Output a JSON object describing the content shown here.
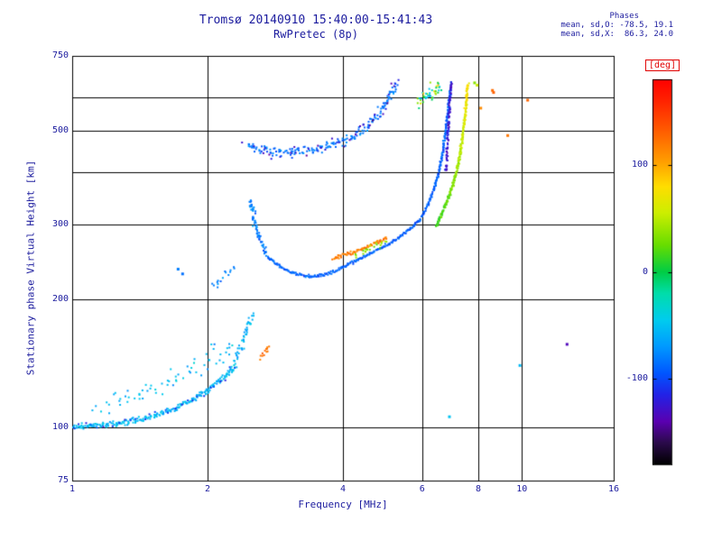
{
  "header": {
    "title": "Tromsø 20140910 15:40:00-15:41:43",
    "subtitle": "RwPretec (8p)",
    "phases_label": "Phases",
    "mean_sd_o": "mean, sd,O: -78.5, 19.1",
    "mean_sd_x": "mean, sd,X:  86.3, 24.0"
  },
  "colors": {
    "background": "#ffffff",
    "text": "#1b1b9e",
    "deg_label": "#e00000",
    "grid": "#000000"
  },
  "axes": {
    "xlabel": "Frequency [MHz]",
    "ylabel": "Stationary phase Virtual Height [km]",
    "x_scale": "log",
    "y_scale": "log",
    "x_min": 1,
    "x_max": 16,
    "y_min": 75,
    "y_max": 750,
    "x_ticks": [
      {
        "v": 1,
        "label": "1"
      },
      {
        "v": 2,
        "label": "2"
      },
      {
        "v": 4,
        "label": "4"
      },
      {
        "v": 6,
        "label": "6"
      },
      {
        "v": 8,
        "label": "8"
      },
      {
        "v": 10,
        "label": "10"
      },
      {
        "v": 16,
        "label": "16"
      }
    ],
    "y_ticks": [
      {
        "v": 75,
        "label": "75"
      },
      {
        "v": 100,
        "label": "100"
      },
      {
        "v": 200,
        "label": "200"
      },
      {
        "v": 300,
        "label": "300"
      },
      {
        "v": 500,
        "label": "500"
      },
      {
        "v": 750,
        "label": "750"
      }
    ],
    "x_grid": [
      2,
      4,
      6,
      8,
      10
    ],
    "y_grid": [
      100,
      200,
      300,
      400,
      500,
      600
    ]
  },
  "colorbar": {
    "title": "[deg]",
    "min": -180,
    "max": 180,
    "ticks": [
      {
        "v": 100,
        "label": "100"
      },
      {
        "v": 0,
        "label": "0"
      },
      {
        "v": -100,
        "label": "-100"
      }
    ],
    "stops": [
      [
        -180,
        "#000000"
      ],
      [
        -160,
        "#2a0a4a"
      ],
      [
        -140,
        "#5a00b0"
      ],
      [
        -115,
        "#2222e6"
      ],
      [
        -95,
        "#0055ff"
      ],
      [
        -70,
        "#0099ff"
      ],
      [
        -45,
        "#00ccee"
      ],
      [
        -20,
        "#00ddaa"
      ],
      [
        0,
        "#00cc44"
      ],
      [
        25,
        "#66dd00"
      ],
      [
        55,
        "#ccee00"
      ],
      [
        80,
        "#ffdd00"
      ],
      [
        105,
        "#ff9900"
      ],
      [
        135,
        "#ff5500"
      ],
      [
        160,
        "#ff2200"
      ],
      [
        180,
        "#ff0000"
      ]
    ]
  },
  "chart_data": {
    "type": "scatter",
    "title": "Tromsø 20140910 15:40:00-15:41:43 — RwPretec (8p)",
    "xlabel": "Frequency [MHz]",
    "ylabel": "Stationary phase Virtual Height [km]",
    "x_scale": "log",
    "y_scale": "log",
    "xlim": [
      1,
      16
    ],
    "ylim": [
      75,
      750
    ],
    "color_meaning": "stationary phase [deg], mapped through rainbow colorbar -180..180",
    "seed": 7,
    "traces": [
      {
        "name": "e-region-main",
        "n": 240,
        "phase": -55,
        "phase_noise": 16,
        "jx": 2,
        "jy": 3,
        "points": [
          [
            1.0,
            100
          ],
          [
            1.1,
            101
          ],
          [
            1.25,
            102
          ],
          [
            1.4,
            104
          ],
          [
            1.55,
            107
          ],
          [
            1.7,
            111
          ],
          [
            1.85,
            116
          ],
          [
            2.0,
            122
          ],
          [
            2.15,
            130
          ],
          [
            2.3,
            139
          ]
        ]
      },
      {
        "name": "e-region-dark",
        "n": 28,
        "phase": -105,
        "phase_noise": 15,
        "jx": 3,
        "jy": 6,
        "points": [
          [
            1.0,
            100
          ],
          [
            1.1,
            101
          ],
          [
            1.25,
            102
          ],
          [
            1.4,
            104
          ],
          [
            1.55,
            107
          ],
          [
            1.7,
            111
          ],
          [
            1.85,
            116
          ],
          [
            2.0,
            122
          ],
          [
            2.15,
            130
          ],
          [
            2.3,
            139
          ]
        ]
      },
      {
        "name": "e-region-scatter",
        "n": 65,
        "phase": -55,
        "phase_noise": 20,
        "jx": 8,
        "jy": 12,
        "points": [
          [
            1.15,
            112
          ],
          [
            1.4,
            118
          ],
          [
            1.6,
            126
          ],
          [
            1.8,
            134
          ],
          [
            2.0,
            142
          ],
          [
            2.15,
            150
          ],
          [
            2.3,
            158
          ]
        ]
      },
      {
        "name": "e-cusp",
        "n": 45,
        "phase": -60,
        "phase_noise": 18,
        "jx": 3,
        "jy": 5,
        "points": [
          [
            2.3,
            142
          ],
          [
            2.36,
            152
          ],
          [
            2.42,
            163
          ],
          [
            2.47,
            174
          ],
          [
            2.52,
            184
          ]
        ]
      },
      {
        "name": "pre-f-scatter",
        "n": 15,
        "phase": -75,
        "phase_noise": 18,
        "jx": 4,
        "jy": 6,
        "points": [
          [
            2.05,
            214
          ],
          [
            2.12,
            222
          ],
          [
            2.2,
            231
          ],
          [
            2.28,
            240
          ]
        ]
      },
      {
        "name": "f-cusp",
        "n": 65,
        "phase": -80,
        "phase_noise": 18,
        "jx": 2,
        "jy": 5,
        "points": [
          [
            2.5,
            345
          ],
          [
            2.52,
            325
          ],
          [
            2.54,
            308
          ],
          [
            2.57,
            292
          ],
          [
            2.61,
            278
          ],
          [
            2.66,
            266
          ],
          [
            2.72,
            257
          ]
        ]
      },
      {
        "name": "f-trace-o",
        "n": 380,
        "phase": -90,
        "phase_noise": 13,
        "jx": 1,
        "jy": 1.5,
        "points": [
          [
            2.72,
            252
          ],
          [
            2.9,
            239
          ],
          [
            3.1,
            231
          ],
          [
            3.3,
            227
          ],
          [
            3.5,
            227
          ],
          [
            3.7,
            230
          ],
          [
            3.9,
            235
          ],
          [
            4.1,
            242
          ],
          [
            4.3,
            248
          ],
          [
            4.5,
            254
          ],
          [
            4.7,
            260
          ],
          [
            4.9,
            266
          ],
          [
            5.1,
            272
          ],
          [
            5.3,
            279
          ],
          [
            5.5,
            287
          ],
          [
            5.7,
            296
          ],
          [
            5.9,
            307
          ],
          [
            6.05,
            320
          ],
          [
            6.2,
            338
          ],
          [
            6.35,
            360
          ],
          [
            6.5,
            390
          ],
          [
            6.62,
            428
          ],
          [
            6.72,
            472
          ],
          [
            6.8,
            522
          ],
          [
            6.87,
            572
          ],
          [
            6.92,
            614
          ],
          [
            6.96,
            648
          ]
        ]
      },
      {
        "name": "f-trace-o-steep",
        "n": 85,
        "phase": -125,
        "phase_noise": 16,
        "jx": 1.2,
        "jy": 4,
        "points": [
          [
            6.78,
            400
          ],
          [
            6.83,
            460
          ],
          [
            6.87,
            520
          ],
          [
            6.91,
            575
          ],
          [
            6.94,
            620
          ],
          [
            6.97,
            650
          ]
        ]
      },
      {
        "name": "f-overlay-orange",
        "n": 75,
        "phase": 118,
        "phase_noise": 15,
        "jx": 1.5,
        "jy": 2,
        "points": [
          [
            3.8,
            250
          ],
          [
            4.0,
            254
          ],
          [
            4.2,
            258
          ],
          [
            4.4,
            263
          ],
          [
            4.6,
            268
          ],
          [
            4.8,
            274
          ],
          [
            5.0,
            280
          ]
        ]
      },
      {
        "name": "f-overlay-green",
        "n": 20,
        "phase": 35,
        "phase_noise": 22,
        "jx": 3,
        "jy": 4,
        "points": [
          [
            4.25,
            255
          ],
          [
            4.5,
            261
          ],
          [
            4.75,
            268
          ],
          [
            5.0,
            275
          ]
        ]
      },
      {
        "name": "x-trace",
        "n": 230,
        "phase": 12,
        "phase_end": 80,
        "phase_noise": 13,
        "jx": 1.2,
        "jy": 2,
        "points": [
          [
            6.45,
            298
          ],
          [
            6.6,
            315
          ],
          [
            6.75,
            332
          ],
          [
            6.9,
            352
          ],
          [
            7.05,
            378
          ],
          [
            7.18,
            408
          ],
          [
            7.3,
            445
          ],
          [
            7.4,
            492
          ],
          [
            7.48,
            545
          ],
          [
            7.54,
            600
          ],
          [
            7.58,
            645
          ]
        ]
      },
      {
        "name": "second-hop",
        "n": 190,
        "phase": -85,
        "phase_noise": 20,
        "jx": 3,
        "jy": 5,
        "points": [
          [
            2.45,
            460
          ],
          [
            2.6,
            452
          ],
          [
            2.8,
            446
          ],
          [
            3.0,
            444
          ],
          [
            3.2,
            446
          ],
          [
            3.4,
            450
          ],
          [
            3.6,
            455
          ],
          [
            3.8,
            462
          ],
          [
            4.0,
            471
          ],
          [
            4.2,
            482
          ],
          [
            4.35,
            494
          ],
          [
            4.5,
            508
          ],
          [
            4.65,
            526
          ],
          [
            4.8,
            547
          ],
          [
            4.95,
            572
          ],
          [
            5.08,
            600
          ],
          [
            5.18,
            626
          ],
          [
            5.26,
            648
          ]
        ]
      },
      {
        "name": "second-hop-dark",
        "n": 32,
        "phase": -130,
        "phase_noise": 18,
        "jx": 5,
        "jy": 8,
        "points": [
          [
            2.45,
            460
          ],
          [
            2.6,
            452
          ],
          [
            2.8,
            446
          ],
          [
            3.0,
            444
          ],
          [
            3.2,
            446
          ],
          [
            3.4,
            450
          ],
          [
            3.6,
            455
          ],
          [
            3.8,
            462
          ],
          [
            4.0,
            471
          ],
          [
            4.2,
            482
          ],
          [
            4.35,
            494
          ],
          [
            4.5,
            508
          ],
          [
            4.65,
            526
          ],
          [
            4.8,
            547
          ],
          [
            4.95,
            572
          ],
          [
            5.08,
            600
          ],
          [
            5.18,
            626
          ],
          [
            5.26,
            648
          ]
        ]
      },
      {
        "name": "top-spread",
        "n": 42,
        "phase": 0,
        "phase_noise": 80,
        "jx": 6,
        "jy": 8,
        "points": [
          [
            5.95,
            585
          ],
          [
            6.1,
            600
          ],
          [
            6.25,
            615
          ],
          [
            6.4,
            630
          ],
          [
            6.55,
            642
          ]
        ]
      },
      {
        "name": "sporadic-orange-low",
        "n": 12,
        "phase": 120,
        "phase_noise": 12,
        "jx": 2,
        "jy": 3,
        "points": [
          [
            2.63,
            146
          ],
          [
            2.68,
            150
          ],
          [
            2.73,
            154
          ]
        ]
      }
    ],
    "extra_points": [
      [
        1.72,
        236,
        -80
      ],
      [
        1.76,
        230,
        -85
      ],
      [
        6.9,
        106,
        -50
      ],
      [
        7.85,
        648,
        35
      ],
      [
        7.95,
        640,
        55
      ],
      [
        8.6,
        622,
        125
      ],
      [
        8.65,
        615,
        130
      ],
      [
        8.1,
        565,
        112
      ],
      [
        9.3,
        487,
        120
      ],
      [
        10.3,
        590,
        128
      ],
      [
        9.9,
        140,
        -55
      ],
      [
        12.6,
        157,
        -135
      ]
    ]
  }
}
